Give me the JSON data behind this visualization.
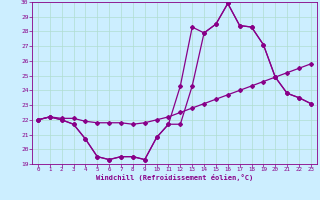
{
  "xlabel": "Windchill (Refroidissement éolien,°C)",
  "bg_color": "#cceeff",
  "grid_color": "#b0ddd0",
  "line_color": "#880088",
  "xlim": [
    -0.5,
    23.5
  ],
  "ylim": [
    19,
    30
  ],
  "yticks": [
    19,
    20,
    21,
    22,
    23,
    24,
    25,
    26,
    27,
    28,
    29,
    30
  ],
  "xticks": [
    0,
    1,
    2,
    3,
    4,
    5,
    6,
    7,
    8,
    9,
    10,
    11,
    12,
    13,
    14,
    15,
    16,
    17,
    18,
    19,
    20,
    21,
    22,
    23
  ],
  "series_spike_x": [
    0,
    1,
    2,
    3,
    4,
    5,
    6,
    7,
    8,
    9,
    10,
    11,
    12,
    13,
    14,
    15,
    16,
    17,
    18,
    19,
    20,
    21,
    22,
    23
  ],
  "series_spike_y": [
    22.0,
    22.2,
    22.0,
    21.7,
    20.7,
    19.5,
    19.3,
    19.5,
    19.5,
    19.3,
    20.8,
    21.7,
    24.3,
    28.3,
    27.9,
    28.5,
    29.9,
    28.4,
    28.3,
    27.1,
    24.9,
    23.8,
    23.5,
    23.1
  ],
  "series_linear_x": [
    0,
    1,
    2,
    3,
    4,
    5,
    6,
    7,
    8,
    9,
    10,
    11,
    12,
    13,
    14,
    15,
    16,
    17,
    18,
    19,
    20,
    21,
    22,
    23
  ],
  "series_linear_y": [
    22.0,
    22.2,
    22.1,
    22.1,
    21.9,
    21.8,
    21.8,
    21.8,
    21.7,
    21.8,
    22.0,
    22.2,
    22.5,
    22.8,
    23.1,
    23.4,
    23.7,
    24.0,
    24.3,
    24.6,
    24.9,
    25.2,
    25.5,
    25.8
  ],
  "series_smooth_x": [
    0,
    1,
    2,
    3,
    4,
    5,
    6,
    7,
    8,
    9,
    10,
    11,
    12,
    13,
    14,
    15,
    16,
    17,
    18,
    19,
    20,
    21,
    22,
    23
  ],
  "series_smooth_y": [
    22.0,
    22.2,
    22.0,
    21.7,
    20.7,
    19.5,
    19.3,
    19.5,
    19.5,
    19.3,
    20.8,
    21.7,
    21.7,
    24.3,
    27.9,
    28.5,
    29.9,
    28.4,
    28.3,
    27.1,
    24.9,
    23.8,
    23.5,
    23.1
  ]
}
